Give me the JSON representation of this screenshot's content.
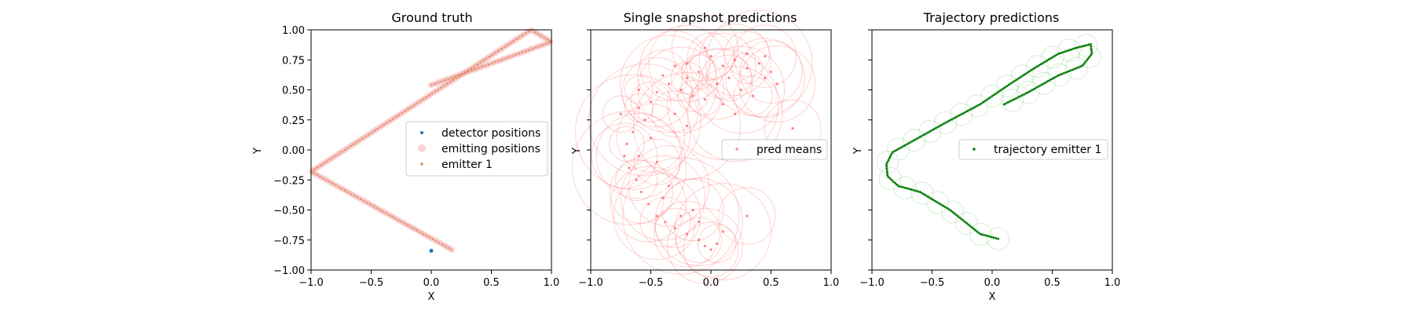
{
  "chart_data": [
    {
      "type": "scatter",
      "title": "Ground truth",
      "xlabel": "X",
      "ylabel": "Y",
      "xlim": [
        -1.0,
        1.0
      ],
      "ylim": [
        -1.0,
        1.0
      ],
      "xticks": [
        "−1.0",
        "−0.5",
        "0.0",
        "0.5",
        "1.0"
      ],
      "yticks": [
        "−1.00",
        "−0.75",
        "−0.50",
        "−0.25",
        "0.00",
        "0.25",
        "0.50",
        "0.75",
        "1.00"
      ],
      "legend_placement": "center-right",
      "series": [
        {
          "name": "detector positions",
          "color": "#1f77b4",
          "points": [
            [
              0.0,
              -0.84
            ]
          ]
        },
        {
          "name": "emitting positions",
          "color": "#f4a6a6",
          "path": [
            [
              0.17,
              -0.83
            ],
            [
              -1.0,
              -0.18
            ],
            [
              0.83,
              1.0
            ],
            [
              1.0,
              0.9
            ],
            [
              0.0,
              0.54
            ]
          ]
        },
        {
          "name": "emitter 1",
          "color": "#d9804f",
          "path": [
            [
              0.17,
              -0.83
            ],
            [
              -1.0,
              -0.18
            ],
            [
              0.83,
              1.0
            ],
            [
              1.0,
              0.9
            ],
            [
              0.0,
              0.54
            ]
          ]
        }
      ]
    },
    {
      "type": "scatter",
      "title": "Single snapshot predictions",
      "xlabel": "",
      "ylabel": "Y",
      "xlim": [
        -1.0,
        1.0
      ],
      "ylim": [
        -1.0,
        1.0
      ],
      "xticks": [
        "−1.0",
        "−0.5",
        "0.0",
        "0.5",
        "1.0"
      ],
      "yticks": [],
      "legend_placement": "center-right",
      "series": [
        {
          "name": "pred means",
          "color": "#ff4d4d",
          "points": [
            [
              -0.3,
              0.7
            ],
            [
              -0.2,
              0.72
            ],
            [
              -0.1,
              0.65
            ],
            [
              0.0,
              0.78
            ],
            [
              0.1,
              0.7
            ],
            [
              0.2,
              0.75
            ],
            [
              0.3,
              0.68
            ],
            [
              0.4,
              0.72
            ],
            [
              0.45,
              0.6
            ],
            [
              0.5,
              0.65
            ],
            [
              -0.4,
              0.62
            ],
            [
              -0.35,
              0.55
            ],
            [
              -0.25,
              0.5
            ],
            [
              -0.15,
              0.45
            ],
            [
              0.05,
              0.55
            ],
            [
              0.15,
              0.6
            ],
            [
              0.25,
              0.5
            ],
            [
              0.35,
              0.45
            ],
            [
              0.55,
              0.55
            ],
            [
              -0.45,
              0.48
            ],
            [
              -0.5,
              0.4
            ],
            [
              -0.6,
              0.35
            ],
            [
              -0.55,
              0.25
            ],
            [
              -0.65,
              0.15
            ],
            [
              -0.7,
              0.05
            ],
            [
              -0.72,
              -0.05
            ],
            [
              -0.68,
              -0.15
            ],
            [
              -0.62,
              -0.25
            ],
            [
              -0.58,
              -0.35
            ],
            [
              -0.52,
              -0.45
            ],
            [
              -0.45,
              -0.55
            ],
            [
              -0.38,
              -0.6
            ],
            [
              -0.3,
              -0.65
            ],
            [
              -0.25,
              -0.55
            ],
            [
              -0.2,
              -0.7
            ],
            [
              -0.1,
              -0.75
            ],
            [
              -0.05,
              -0.8
            ],
            [
              0.0,
              -0.83
            ],
            [
              0.05,
              -0.78
            ],
            [
              0.1,
              -0.68
            ],
            [
              0.3,
              -0.55
            ],
            [
              0.68,
              0.18
            ],
            [
              -0.05,
              0.42
            ],
            [
              0.1,
              0.38
            ],
            [
              -0.3,
              0.3
            ],
            [
              -0.2,
              0.2
            ],
            [
              -0.5,
              0.1
            ],
            [
              -0.45,
              -0.1
            ],
            [
              -0.35,
              -0.3
            ],
            [
              -0.15,
              -0.5
            ],
            [
              0.2,
              0.3
            ],
            [
              -0.6,
              -0.05
            ],
            [
              -0.75,
              0.3
            ],
            [
              0.3,
              0.8
            ],
            [
              -0.05,
              0.85
            ],
            [
              -0.2,
              0.6
            ],
            [
              -0.6,
              0.5
            ],
            [
              0.45,
              0.78
            ],
            [
              -0.1,
              -0.6
            ],
            [
              -0.4,
              -0.4
            ]
          ]
        }
      ]
    },
    {
      "type": "scatter",
      "title": "Trajectory predictions",
      "xlabel": "X",
      "ylabel": "Y",
      "xlim": [
        -1.0,
        1.0
      ],
      "ylim": [
        -1.0,
        1.0
      ],
      "xticks": [
        "−1.0",
        "−0.5",
        "0.0",
        "0.5",
        "1.0"
      ],
      "yticks": [],
      "legend_placement": "center-right",
      "series": [
        {
          "name": "trajectory emitter 1",
          "color": "#0a800a",
          "path": [
            [
              0.05,
              -0.74
            ],
            [
              -0.1,
              -0.7
            ],
            [
              -0.35,
              -0.5
            ],
            [
              -0.6,
              -0.35
            ],
            [
              -0.78,
              -0.3
            ],
            [
              -0.87,
              -0.22
            ],
            [
              -0.88,
              -0.12
            ],
            [
              -0.83,
              -0.02
            ],
            [
              -0.65,
              0.08
            ],
            [
              -0.4,
              0.22
            ],
            [
              -0.1,
              0.38
            ],
            [
              0.15,
              0.55
            ],
            [
              0.35,
              0.68
            ],
            [
              0.55,
              0.8
            ],
            [
              0.7,
              0.85
            ],
            [
              0.82,
              0.88
            ],
            [
              0.83,
              0.8
            ],
            [
              0.75,
              0.7
            ],
            [
              0.55,
              0.62
            ],
            [
              0.3,
              0.48
            ],
            [
              0.1,
              0.38
            ]
          ]
        }
      ]
    }
  ]
}
